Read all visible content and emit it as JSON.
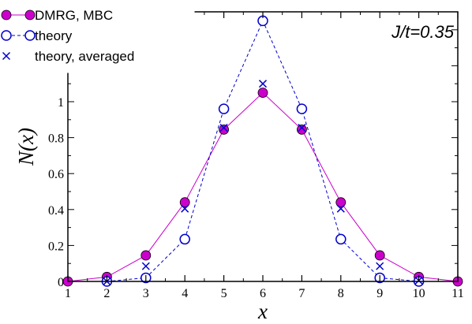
{
  "chart_data": {
    "type": "line",
    "xlabel": "x",
    "ylabel": "N(x)",
    "xlim": [
      1,
      11
    ],
    "ylim": [
      0,
      1.5
    ],
    "xticks": [
      1,
      2,
      3,
      4,
      5,
      6,
      7,
      8,
      9,
      10,
      11
    ],
    "yticks": [
      0,
      0.2,
      0.4,
      0.6,
      0.8,
      1
    ],
    "yticklabels": [
      "0",
      "0.2",
      "0.4",
      "0.6",
      "0.8",
      "1"
    ],
    "annotation": "J/t=0.35",
    "grid": false,
    "legend_position": "top-left",
    "series": [
      {
        "name": "DMRG, MBC",
        "color": "#cc00cc",
        "marker": "filled-circle",
        "line": "solid",
        "x": [
          1,
          2,
          3,
          4,
          5,
          6,
          7,
          8,
          9,
          10,
          11
        ],
        "y": [
          0.0,
          0.025,
          0.145,
          0.44,
          0.845,
          1.05,
          0.845,
          0.44,
          0.145,
          0.025,
          0.0
        ]
      },
      {
        "name": "theory",
        "color": "#0000cc",
        "marker": "open-circle",
        "line": "dashed",
        "x": [
          2,
          3,
          4,
          5,
          6,
          7,
          8,
          9,
          10
        ],
        "y": [
          0.0,
          0.02,
          0.235,
          0.96,
          1.45,
          0.96,
          0.235,
          0.02,
          0.0
        ]
      },
      {
        "name": "theory, averaged",
        "color": "#0000cc",
        "marker": "cross",
        "line": "none",
        "x": [
          2,
          3,
          4,
          5,
          6,
          7,
          8,
          9,
          10
        ],
        "y": [
          0.0,
          0.085,
          0.405,
          0.855,
          1.1,
          0.855,
          0.405,
          0.085,
          0.005
        ]
      }
    ]
  }
}
